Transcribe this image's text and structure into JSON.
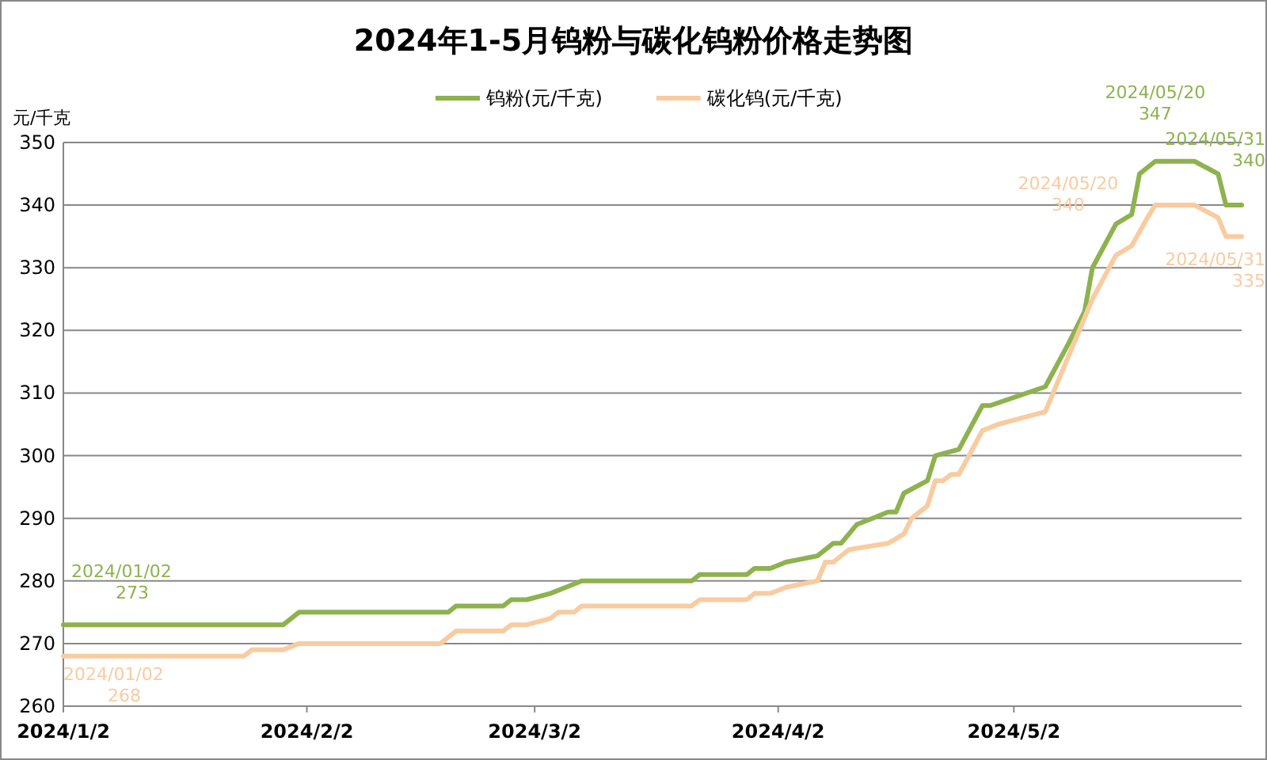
{
  "chart_data": {
    "type": "line",
    "title": "2024年1-5月钨粉与碳化钨粉价格走势图",
    "ylabel": "元/千克",
    "xlim": [
      "2024-01-02",
      "2024-05-31"
    ],
    "xticks": [
      {
        "value": "2024-01-02",
        "label": "2024/1/2"
      },
      {
        "value": "2024-02-02",
        "label": "2024/2/2"
      },
      {
        "value": "2024-03-02",
        "label": "2024/3/2"
      },
      {
        "value": "2024-04-02",
        "label": "2024/4/2"
      },
      {
        "value": "2024-05-02",
        "label": "2024/5/2"
      }
    ],
    "ylim": [
      260,
      350
    ],
    "yticks": [
      260,
      270,
      280,
      290,
      300,
      310,
      320,
      330,
      340,
      350
    ],
    "grid": "y",
    "legend": "top",
    "marker": "none",
    "line_style": "solid",
    "series": [
      {
        "name": "钨粉(元/千克)",
        "color": "#8db24e",
        "x": [
          "2024-01-02",
          "2024-01-30",
          "2024-02-01",
          "2024-02-20",
          "2024-02-21",
          "2024-02-27",
          "2024-02-28",
          "2024-03-01",
          "2024-03-04",
          "2024-03-06",
          "2024-03-08",
          "2024-03-22",
          "2024-03-23",
          "2024-03-29",
          "2024-03-30",
          "2024-04-01",
          "2024-04-03",
          "2024-04-07",
          "2024-04-09",
          "2024-04-10",
          "2024-04-12",
          "2024-04-14",
          "2024-04-16",
          "2024-04-17",
          "2024-04-18",
          "2024-04-21",
          "2024-04-22",
          "2024-04-25",
          "2024-04-28",
          "2024-04-29",
          "2024-05-06",
          "2024-05-09",
          "2024-05-11",
          "2024-05-12",
          "2024-05-15",
          "2024-05-17",
          "2024-05-18",
          "2024-05-20",
          "2024-05-25",
          "2024-05-28",
          "2024-05-29",
          "2024-05-31"
        ],
        "values": [
          273,
          273,
          275,
          275,
          276,
          276,
          277,
          277,
          278,
          279,
          280,
          280,
          281,
          281,
          282,
          282,
          283,
          284,
          286,
          286,
          289,
          290,
          291,
          291,
          294,
          296,
          300,
          301,
          308,
          308,
          311,
          318,
          323,
          330,
          337,
          338.5,
          345,
          347,
          347,
          345,
          340,
          340
        ]
      },
      {
        "name": "碳化钨(元/千克)",
        "color": "#f9cba0",
        "x": [
          "2024-01-02",
          "2024-01-25",
          "2024-01-26",
          "2024-01-30",
          "2024-02-01",
          "2024-02-19",
          "2024-02-21",
          "2024-02-27",
          "2024-02-28",
          "2024-03-01",
          "2024-03-04",
          "2024-03-05",
          "2024-03-07",
          "2024-03-08",
          "2024-03-22",
          "2024-03-23",
          "2024-03-29",
          "2024-03-30",
          "2024-04-01",
          "2024-04-03",
          "2024-04-07",
          "2024-04-08",
          "2024-04-09",
          "2024-04-11",
          "2024-04-16",
          "2024-04-18",
          "2024-04-19",
          "2024-04-21",
          "2024-04-22",
          "2024-04-23",
          "2024-04-24",
          "2024-04-25",
          "2024-04-28",
          "2024-04-30",
          "2024-05-06",
          "2024-05-08",
          "2024-05-10",
          "2024-05-12",
          "2024-05-15",
          "2024-05-17",
          "2024-05-19",
          "2024-05-20",
          "2024-05-25",
          "2024-05-28",
          "2024-05-29",
          "2024-05-31"
        ],
        "values": [
          268,
          268,
          269,
          269,
          270,
          270,
          272,
          272,
          273,
          273,
          274,
          275,
          275,
          276,
          276,
          277,
          277,
          278,
          278,
          279,
          280,
          283,
          283,
          285,
          286,
          287.5,
          290,
          292,
          296,
          296,
          297,
          297,
          304,
          305,
          307,
          313,
          319,
          325,
          332,
          333.5,
          338,
          340,
          340,
          338,
          335,
          335
        ]
      }
    ],
    "annotations": [
      {
        "text": "2024/01/02\n273",
        "x": "2024-01-02",
        "y": 273
      },
      {
        "text": "2024/01/02\n268",
        "x": "2024-01-02",
        "y": 268
      },
      {
        "text": "2024/05/20\n347",
        "x": "2024-05-20",
        "y": 347
      },
      {
        "text": "2024/05/20\n340",
        "x": "2024-05-20",
        "y": 340
      },
      {
        "text": "2024/05/31\n340",
        "x": "2024-05-31",
        "y": 340
      },
      {
        "text": "2024/05/31\n335",
        "x": "2024-05-31",
        "y": 335
      }
    ]
  }
}
